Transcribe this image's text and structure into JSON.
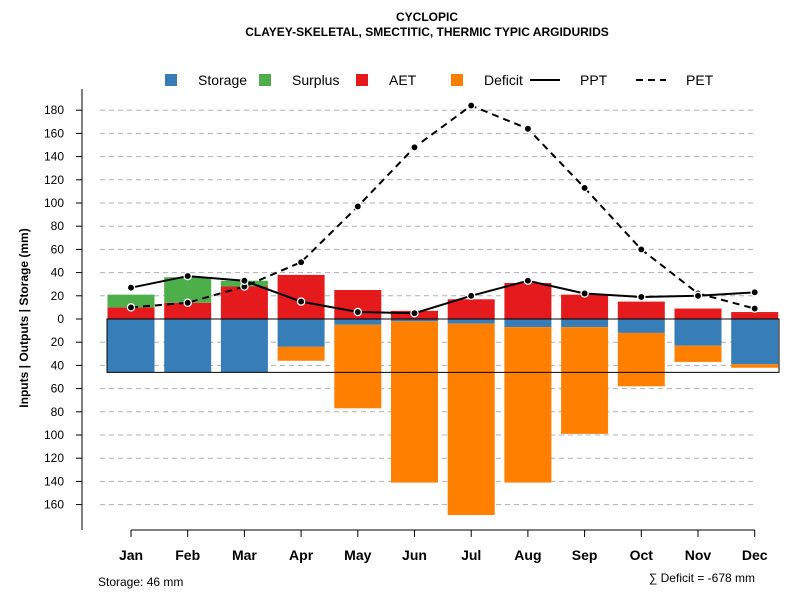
{
  "chart_data": {
    "type": "bar",
    "title": "CYCLOPIC",
    "subtitle": "CLAYEY-SKELETAL, SMECTITIC, THERMIC TYPIC ARGIDURIDS",
    "ylabel": "Inputs | Outputs | Storage    (mm)",
    "ylim": [
      -180,
      190
    ],
    "ytick_values": [
      180,
      160,
      140,
      120,
      100,
      80,
      60,
      40,
      20,
      0,
      -20,
      -40,
      -60,
      -80,
      -100,
      -120,
      -140,
      -160
    ],
    "ytick_labels": [
      "180",
      "160",
      "140",
      "120",
      "100",
      "80",
      "60",
      "40",
      "20",
      "0",
      "20",
      "40",
      "60",
      "80",
      "100",
      "120",
      "140",
      "160"
    ],
    "categories": [
      "Jan",
      "Feb",
      "Mar",
      "Apr",
      "May",
      "Jun",
      "Jul",
      "Aug",
      "Sep",
      "Oct",
      "Nov",
      "Dec"
    ],
    "legend": [
      {
        "label": "Storage",
        "kind": "box",
        "color": "#377eb8"
      },
      {
        "label": "Surplus",
        "kind": "box",
        "color": "#4daf4a"
      },
      {
        "label": "AET",
        "kind": "box",
        "color": "#e41a1c"
      },
      {
        "label": "Deficit",
        "kind": "box",
        "color": "#ff7f00"
      },
      {
        "label": "PPT",
        "kind": "solid",
        "color": "#000000"
      },
      {
        "label": "PET",
        "kind": "dashed",
        "color": "#000000"
      }
    ],
    "series": [
      {
        "name": "AET",
        "color": "#e41a1c",
        "values": [
          10,
          14,
          28,
          38,
          25,
          7,
          17,
          31,
          21,
          15,
          9,
          6
        ]
      },
      {
        "name": "Surplus",
        "color": "#4daf4a",
        "values": [
          11,
          22,
          5,
          0,
          0,
          0,
          0,
          0,
          0,
          0,
          0,
          0
        ]
      },
      {
        "name": "Storage",
        "color": "#377eb8",
        "values": [
          -46,
          -46,
          -46,
          -24,
          -5,
          -2,
          -4,
          -7,
          -7,
          -12,
          -23,
          -39
        ]
      },
      {
        "name": "Deficit",
        "color": "#ff7f00",
        "values": [
          0,
          0,
          0,
          -12,
          -72,
          -139,
          -165,
          -134,
          -92,
          -46,
          -14,
          -3
        ]
      },
      {
        "name": "PPT",
        "color": "#000000",
        "line": "solid",
        "values": [
          27,
          37,
          33,
          15,
          6,
          5,
          20,
          33,
          22,
          19,
          20,
          23
        ]
      },
      {
        "name": "PET",
        "color": "#000000",
        "line": "dashed",
        "values": [
          10,
          14,
          28,
          49,
          97,
          148,
          184,
          164,
          113,
          60,
          22,
          9
        ]
      }
    ],
    "storage_capacity": 46,
    "grid": true
  },
  "notes": {
    "storage": "Storage: 46 mm",
    "deficit": "∑ Deficit = -678 mm"
  }
}
